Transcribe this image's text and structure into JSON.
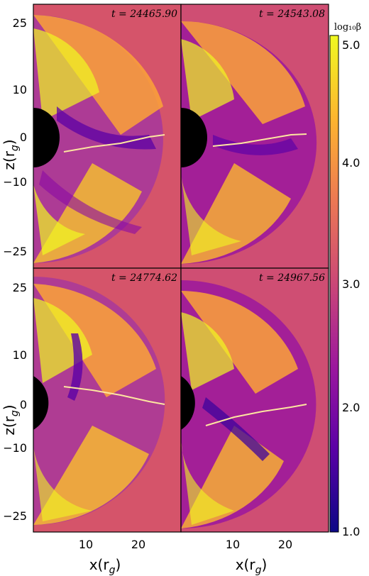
{
  "chart_data": {
    "type": "heatmap",
    "colorbar": {
      "label": "log₁₀β",
      "range": [
        1.0,
        5.0
      ],
      "ticks": [
        "1.0",
        "2.0",
        "3.0",
        "4.0",
        "5.0"
      ],
      "colormap": [
        "#0c0786",
        "#5c01a6",
        "#9b179e",
        "#cb4777",
        "#ed7953",
        "#fdb42f",
        "#f0f921"
      ]
    },
    "x_axis": {
      "label": "x(r_g)",
      "ticks": [
        "10",
        "20"
      ],
      "range": [
        0,
        28
      ]
    },
    "y_axis": {
      "label": "z(r_g)",
      "ticks": [
        "25",
        "10",
        "0",
        "−10",
        "−25"
      ],
      "range": [
        -29,
        29
      ]
    },
    "panels": [
      {
        "time_label": "t = 24465.90"
      },
      {
        "time_label": "t = 24543.08"
      },
      {
        "time_label": "t = 24774.62"
      },
      {
        "time_label": "t = 24967.56"
      }
    ]
  }
}
